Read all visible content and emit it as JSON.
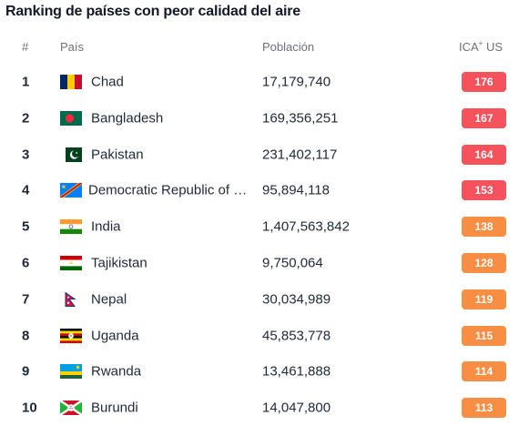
{
  "title": "Ranking de países con peor calidad del aire",
  "columns": {
    "rank": "#",
    "country": "País",
    "population": "Población",
    "aqi": "ICA",
    "aqi_sup": "+",
    "aqi_suffix": " US"
  },
  "colors": {
    "red": "#f6525c",
    "orange": "#f88e44"
  },
  "rows": [
    {
      "rank": "1",
      "country": "Chad",
      "flag": "chad-flag-icon",
      "population": "17,179,740",
      "aqi": "176",
      "level": "red"
    },
    {
      "rank": "2",
      "country": "Bangladesh",
      "flag": "bangladesh-flag-icon",
      "population": "169,356,251",
      "aqi": "167",
      "level": "red"
    },
    {
      "rank": "3",
      "country": "Pakistan",
      "flag": "pakistan-flag-icon",
      "population": "231,402,117",
      "aqi": "164",
      "level": "red"
    },
    {
      "rank": "4",
      "country": "Democratic Republic of the Congo",
      "flag": "dr-congo-flag-icon",
      "population": "95,894,118",
      "aqi": "153",
      "level": "red"
    },
    {
      "rank": "5",
      "country": "India",
      "flag": "india-flag-icon",
      "population": "1,407,563,842",
      "aqi": "138",
      "level": "orange"
    },
    {
      "rank": "6",
      "country": "Tajikistan",
      "flag": "tajikistan-flag-icon",
      "population": "9,750,064",
      "aqi": "128",
      "level": "orange"
    },
    {
      "rank": "7",
      "country": "Nepal",
      "flag": "nepal-flag-icon",
      "population": "30,034,989",
      "aqi": "119",
      "level": "orange"
    },
    {
      "rank": "8",
      "country": "Uganda",
      "flag": "uganda-flag-icon",
      "population": "45,853,778",
      "aqi": "115",
      "level": "orange"
    },
    {
      "rank": "9",
      "country": "Rwanda",
      "flag": "rwanda-flag-icon",
      "population": "13,461,888",
      "aqi": "114",
      "level": "orange"
    },
    {
      "rank": "10",
      "country": "Burundi",
      "flag": "burundi-flag-icon",
      "population": "14,047,800",
      "aqi": "113",
      "level": "orange"
    }
  ]
}
